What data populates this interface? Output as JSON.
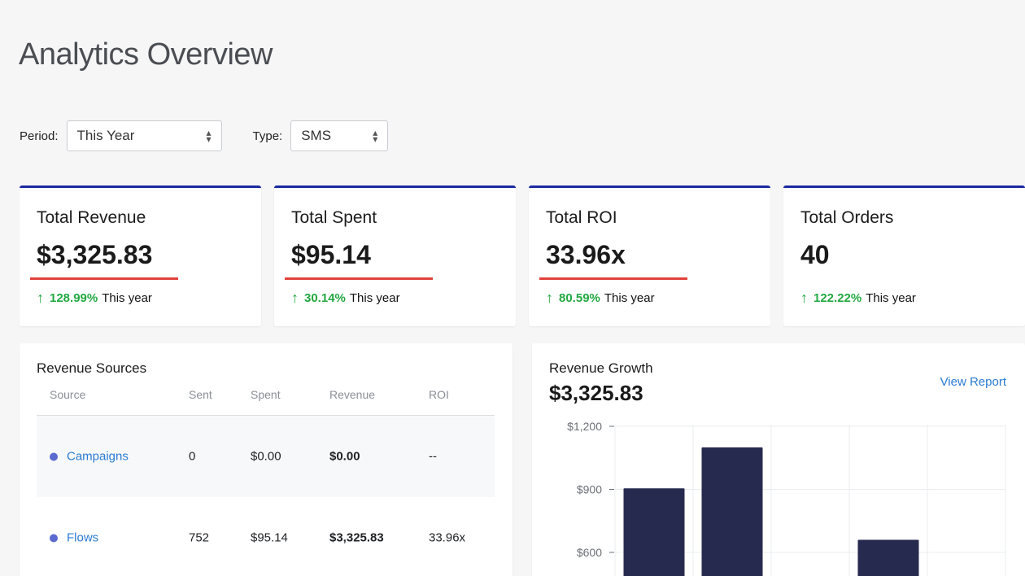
{
  "page": {
    "title": "Analytics Overview"
  },
  "filters": {
    "period_label": "Period:",
    "period_value": "This Year",
    "type_label": "Type:",
    "type_value": "SMS"
  },
  "kpis": [
    {
      "title": "Total Revenue",
      "value": "$3,325.83",
      "change": "128.99%",
      "period": "This year"
    },
    {
      "title": "Total Spent",
      "value": "$95.14",
      "change": "30.14%",
      "period": "This year"
    },
    {
      "title": "Total ROI",
      "value": "33.96x",
      "change": "80.59%",
      "period": "This year"
    },
    {
      "title": "Total Orders",
      "value": "40",
      "change": "122.22%",
      "period": "This year"
    }
  ],
  "revenue_sources": {
    "title": "Revenue Sources",
    "columns": [
      "Source",
      "Sent",
      "Spent",
      "Revenue",
      "ROI"
    ],
    "rows": [
      {
        "source": "Campaigns",
        "sent": "0",
        "spent": "$0.00",
        "revenue": "$0.00",
        "roi": "--"
      },
      {
        "source": "Flows",
        "sent": "752",
        "spent": "$95.14",
        "revenue": "$3,325.83",
        "roi": "33.96x"
      }
    ]
  },
  "revenue_growth": {
    "title": "Revenue Growth",
    "total": "$3,325.83",
    "view_report": "View Report"
  },
  "chart_data": {
    "type": "bar",
    "title": "",
    "xlabel": "",
    "ylabel": "",
    "y_ticks": [
      "$1,200",
      "$900",
      "$600"
    ],
    "y_tick_values": [
      1200,
      900,
      600
    ],
    "values": [
      905,
      1100,
      null,
      660
    ],
    "grid": true,
    "colors": {
      "bar": "#272a4f",
      "grid": "#ebecef"
    }
  },
  "colors": {
    "accent": "#1b2aa0",
    "underline": "#e0413a",
    "positive": "#23a842",
    "link": "#2a7bd1"
  },
  "icons": {
    "up_arrow": "↑",
    "select_caret": "⌃⌄"
  }
}
